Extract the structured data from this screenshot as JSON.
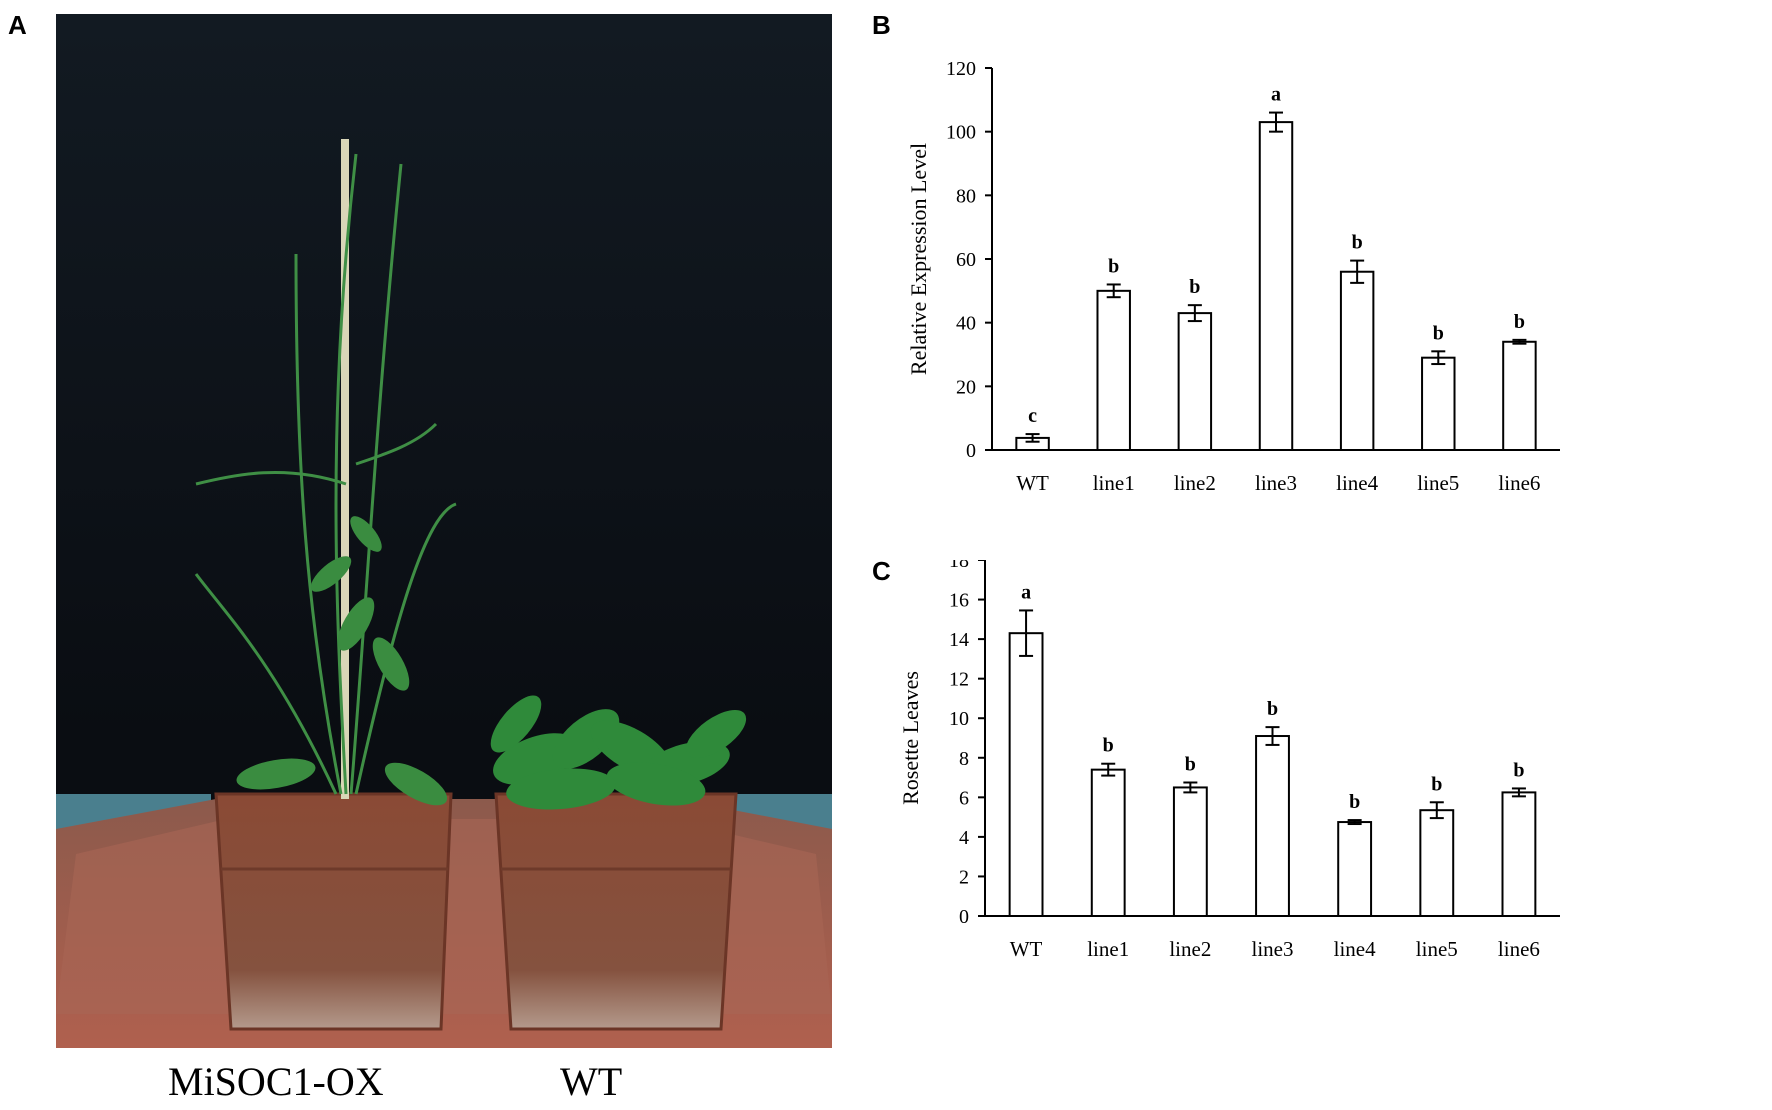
{
  "panels": {
    "a_label": "A",
    "b_label": "B",
    "c_label": "C"
  },
  "photo": {
    "caption_left": "MiSOC1-OX",
    "caption_right": "WT"
  },
  "chart_data": [
    {
      "panel": "B",
      "type": "bar",
      "categories": [
        "WT",
        "line1",
        "line2",
        "line3",
        "line4",
        "line5",
        "line6"
      ],
      "values": [
        3.8,
        50,
        43,
        103,
        56,
        29,
        34
      ],
      "errors": [
        1.2,
        2,
        2.5,
        3,
        3.5,
        2,
        0.6
      ],
      "significance": [
        "c",
        "b",
        "b",
        "a",
        "b",
        "b",
        "b"
      ],
      "ylabel": "Relative Expression Level",
      "xlabel": "",
      "ylim": [
        0,
        120
      ],
      "yticks": [
        0,
        20,
        40,
        60,
        80,
        100,
        120
      ],
      "grid": false
    },
    {
      "panel": "C",
      "type": "bar",
      "categories": [
        "WT",
        "line1",
        "line2",
        "line3",
        "line4",
        "line5",
        "line6"
      ],
      "values": [
        14.3,
        7.4,
        6.5,
        9.1,
        4.75,
        5.35,
        6.25
      ],
      "errors": [
        1.15,
        0.3,
        0.25,
        0.45,
        0.1,
        0.4,
        0.2
      ],
      "significance": [
        "a",
        "b",
        "b",
        "b",
        "b",
        "b",
        "b"
      ],
      "ylabel": "Rosette Leaves",
      "xlabel": "",
      "ylim": [
        0,
        18
      ],
      "yticks": [
        0,
        2,
        4,
        6,
        8,
        10,
        12,
        14,
        16,
        18
      ],
      "grid": false
    }
  ]
}
